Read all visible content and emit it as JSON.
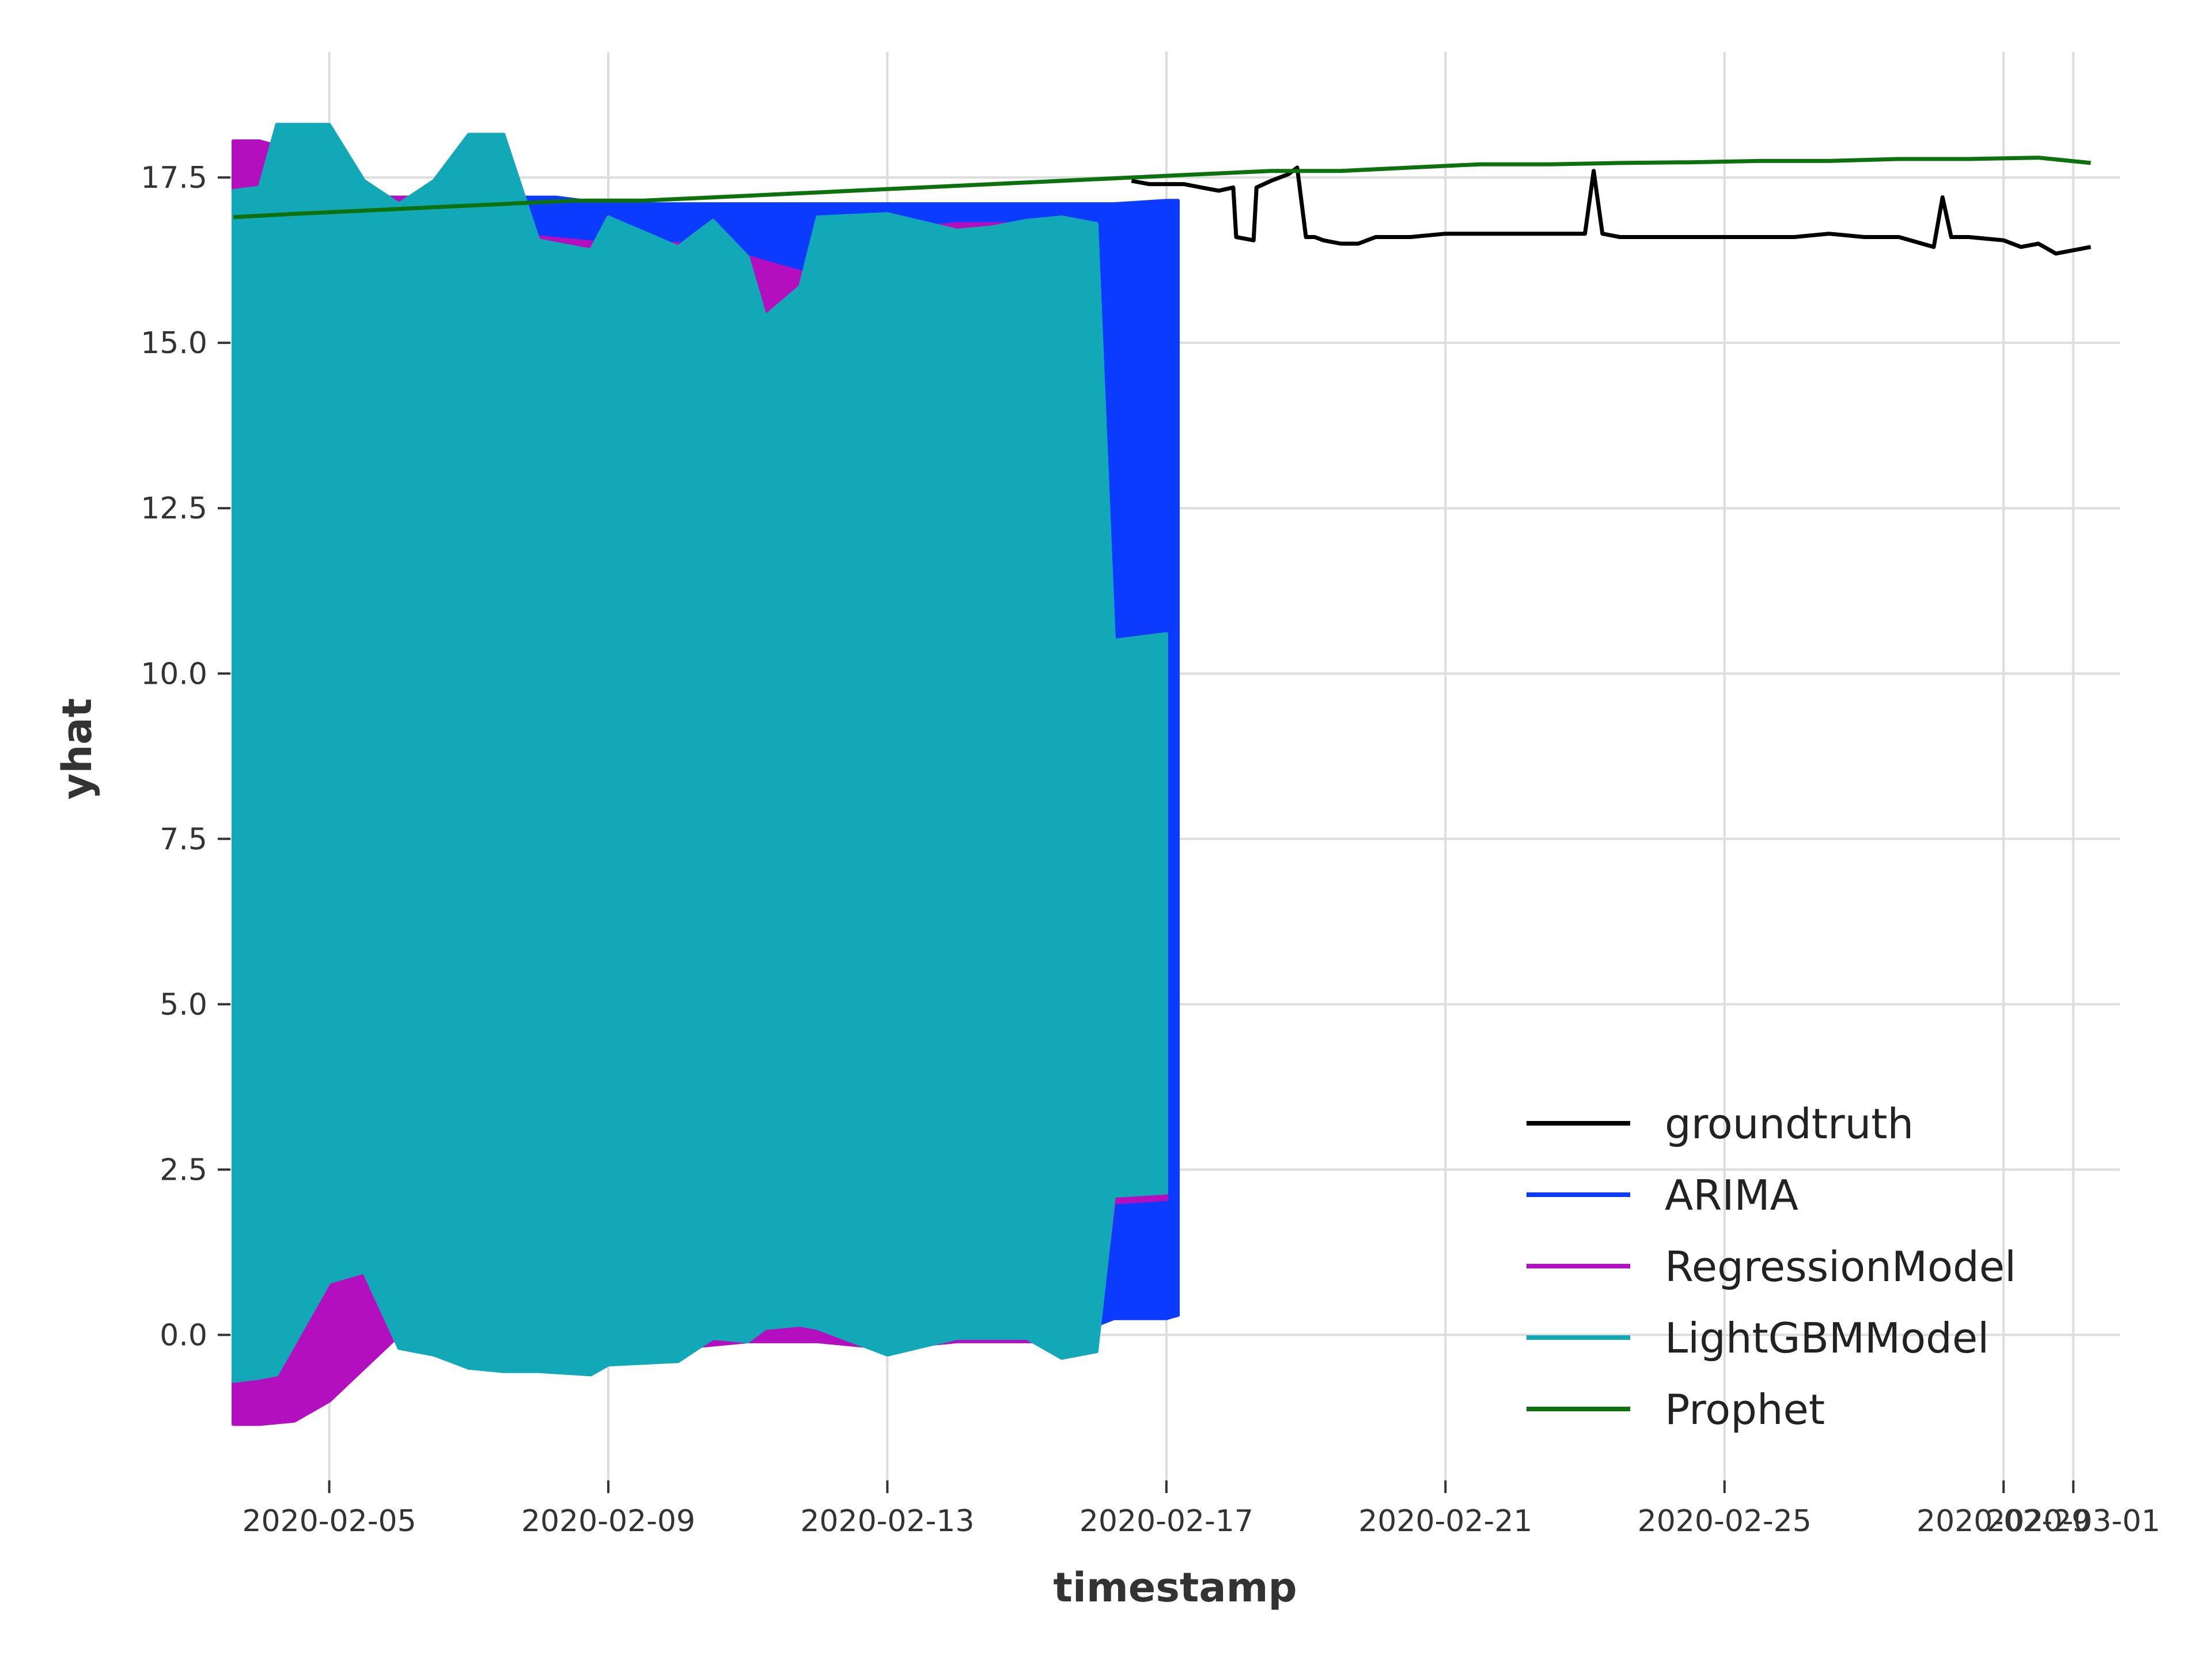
{
  "chart_data": {
    "type": "line",
    "title": "",
    "xlabel": "timestamp",
    "ylabel": "yhat",
    "xlim": [
      "2020-02-03T14:00",
      "2020-03-01T16:00"
    ],
    "ylim": [
      -2.2,
      19.4
    ],
    "grid": true,
    "legend_position": "bottom-right",
    "x_ticks": [
      "2020-02-05",
      "2020-02-09",
      "2020-02-13",
      "2020-02-17",
      "2020-02-21",
      "2020-02-25",
      "2020-02-29",
      "2020-03-01"
    ],
    "y_ticks": [
      0.0,
      2.5,
      5.0,
      7.5,
      10.0,
      12.5,
      15.0,
      17.5
    ],
    "series": [
      {
        "name": "groundtruth",
        "color": "#000000",
        "style": "line",
        "x": [
          "2020-02-16T12:00",
          "2020-02-16T18:00",
          "2020-02-17T00:00",
          "2020-02-17T06:00",
          "2020-02-17T12:00",
          "2020-02-17T18:00",
          "2020-02-17T23:00",
          "2020-02-18T00:00",
          "2020-02-18T06:00",
          "2020-02-18T07:00",
          "2020-02-18T12:00",
          "2020-02-18T18:00",
          "2020-02-18T21:00",
          "2020-02-19T00:00",
          "2020-02-19T03:00",
          "2020-02-19T06:00",
          "2020-02-19T12:00",
          "2020-02-19T18:00",
          "2020-02-20T00:00",
          "2020-02-20T06:00",
          "2020-02-20T12:00",
          "2020-02-21T00:00",
          "2020-02-21T12:00",
          "2020-02-22T00:00",
          "2020-02-22T12:00",
          "2020-02-23T00:00",
          "2020-02-23T03:00",
          "2020-02-23T06:00",
          "2020-02-23T12:00",
          "2020-02-24T00:00",
          "2020-02-24T12:00",
          "2020-02-25T00:00",
          "2020-02-25T12:00",
          "2020-02-26T00:00",
          "2020-02-26T12:00",
          "2020-02-27T00:00",
          "2020-02-27T12:00",
          "2020-02-28T00:00",
          "2020-02-28T03:00",
          "2020-02-28T06:00",
          "2020-02-28T12:00",
          "2020-02-29T00:00",
          "2020-02-29T06:00",
          "2020-02-29T12:00",
          "2020-02-29T18:00",
          "2020-03-01T00:00",
          "2020-03-01T06:00"
        ],
        "y": [
          17.45,
          17.4,
          17.4,
          17.4,
          17.35,
          17.3,
          17.35,
          16.6,
          16.55,
          17.35,
          17.45,
          17.55,
          17.65,
          16.6,
          16.6,
          16.55,
          16.5,
          16.5,
          16.6,
          16.6,
          16.6,
          16.65,
          16.65,
          16.65,
          16.65,
          16.65,
          17.6,
          16.65,
          16.6,
          16.6,
          16.6,
          16.6,
          16.6,
          16.6,
          16.65,
          16.6,
          16.6,
          16.45,
          17.2,
          16.6,
          16.6,
          16.55,
          16.45,
          16.5,
          16.35,
          16.4,
          16.45
        ]
      },
      {
        "name": "ARIMA",
        "color": "#0a3bff",
        "style": "band",
        "x": [
          "2020-02-03T18:00",
          "2020-02-05T00:00",
          "2020-02-07T00:00",
          "2020-02-08T06:00",
          "2020-02-09T00:00",
          "2020-02-10T00:00",
          "2020-02-11T00:00",
          "2020-02-11T12:00",
          "2020-02-12T00:00",
          "2020-02-13T00:00",
          "2020-02-14T00:00",
          "2020-02-15T00:00",
          "2020-02-16T00:00",
          "2020-02-16T06:00",
          "2020-02-17T00:00",
          "2020-02-17T04:00"
        ],
        "upper": [
          17.2,
          17.2,
          17.2,
          17.2,
          17.1,
          17.1,
          17.1,
          17.1,
          17.1,
          17.1,
          17.1,
          17.1,
          17.1,
          17.1,
          17.15,
          17.15
        ],
        "lower": [
          0.15,
          0.15,
          0.15,
          0.15,
          0.15,
          0.15,
          0.15,
          0.15,
          0.15,
          0.15,
          0.15,
          0.15,
          0.15,
          0.25,
          0.25,
          0.3
        ]
      },
      {
        "name": "RegressionModel",
        "color": "#b40fbe",
        "style": "band",
        "x": [
          "2020-02-03T15:00",
          "2020-02-04T00:00",
          "2020-02-04T12:00",
          "2020-02-05T00:00",
          "2020-02-06T00:00",
          "2020-02-07T00:00",
          "2020-02-08T00:00",
          "2020-02-09T00:00",
          "2020-02-10T00:00",
          "2020-02-11T00:00",
          "2020-02-12T00:00",
          "2020-02-13T00:00",
          "2020-02-14T00:00",
          "2020-02-15T00:00",
          "2020-02-16T00:00",
          "2020-02-16T06:00",
          "2020-02-17T00:00"
        ],
        "upper": [
          18.05,
          18.05,
          17.9,
          17.2,
          17.2,
          17.2,
          16.6,
          16.5,
          16.5,
          16.3,
          16.0,
          16.7,
          16.8,
          16.8,
          16.6,
          10.5,
          10.6
        ],
        "lower": [
          -1.35,
          -1.35,
          -1.3,
          -1.0,
          0.0,
          -0.1,
          -0.2,
          -0.3,
          -0.2,
          -0.1,
          -0.1,
          -0.2,
          -0.1,
          -0.1,
          -0.1,
          2.0,
          2.05
        ]
      },
      {
        "name": "LightGBMModel",
        "color": "#12a8b8",
        "style": "band",
        "x": [
          "2020-02-03T15:00",
          "2020-02-04T00:00",
          "2020-02-04T06:00",
          "2020-02-05T00:00",
          "2020-02-05T12:00",
          "2020-02-06T00:00",
          "2020-02-06T12:00",
          "2020-02-07T00:00",
          "2020-02-07T12:00",
          "2020-02-08T00:00",
          "2020-02-08T18:00",
          "2020-02-09T00:00",
          "2020-02-10T00:00",
          "2020-02-10T12:00",
          "2020-02-11T00:00",
          "2020-02-11T06:00",
          "2020-02-11T18:00",
          "2020-02-12T00:00",
          "2020-02-13T00:00",
          "2020-02-14T00:00",
          "2020-02-14T12:00",
          "2020-02-15T00:00",
          "2020-02-15T12:00",
          "2020-02-16T00:00",
          "2020-02-16T06:00",
          "2020-02-17T00:00"
        ],
        "upper": [
          17.3,
          17.35,
          18.3,
          18.3,
          17.45,
          17.1,
          17.45,
          18.15,
          18.15,
          16.55,
          16.4,
          16.9,
          16.45,
          16.85,
          16.3,
          15.4,
          15.85,
          16.9,
          16.95,
          16.7,
          16.75,
          16.85,
          16.9,
          16.8,
          10.5,
          10.6
        ],
        "lower": [
          -0.7,
          -0.65,
          -0.6,
          0.8,
          0.95,
          -0.2,
          -0.3,
          -0.5,
          -0.55,
          -0.55,
          -0.6,
          -0.45,
          -0.4,
          -0.05,
          -0.1,
          0.1,
          0.15,
          0.1,
          -0.3,
          -0.05,
          -0.05,
          -0.05,
          -0.35,
          -0.25,
          2.1,
          2.15
        ]
      },
      {
        "name": "Prophet",
        "color": "#0d720d",
        "style": "line",
        "x": [
          "2020-02-03T15:00",
          "2020-02-04T12:00",
          "2020-02-05T12:00",
          "2020-02-06T12:00",
          "2020-02-07T12:00",
          "2020-02-08T12:00",
          "2020-02-09T12:00",
          "2020-02-10T12:00",
          "2020-02-11T12:00",
          "2020-02-12T12:00",
          "2020-02-13T12:00",
          "2020-02-14T12:00",
          "2020-02-15T12:00",
          "2020-02-16T12:00",
          "2020-02-17T12:00",
          "2020-02-18T12:00",
          "2020-02-19T12:00",
          "2020-02-20T12:00",
          "2020-02-21T12:00",
          "2020-02-22T12:00",
          "2020-02-23T12:00",
          "2020-02-24T12:00",
          "2020-02-25T12:00",
          "2020-02-26T12:00",
          "2020-02-27T12:00",
          "2020-02-28T12:00",
          "2020-02-29T12:00",
          "2020-03-01T06:00"
        ],
        "y": [
          16.9,
          16.95,
          17.0,
          17.05,
          17.1,
          17.15,
          17.15,
          17.2,
          17.25,
          17.3,
          17.35,
          17.4,
          17.45,
          17.5,
          17.55,
          17.6,
          17.6,
          17.65,
          17.7,
          17.7,
          17.72,
          17.73,
          17.75,
          17.75,
          17.78,
          17.78,
          17.8,
          17.72
        ]
      }
    ]
  }
}
